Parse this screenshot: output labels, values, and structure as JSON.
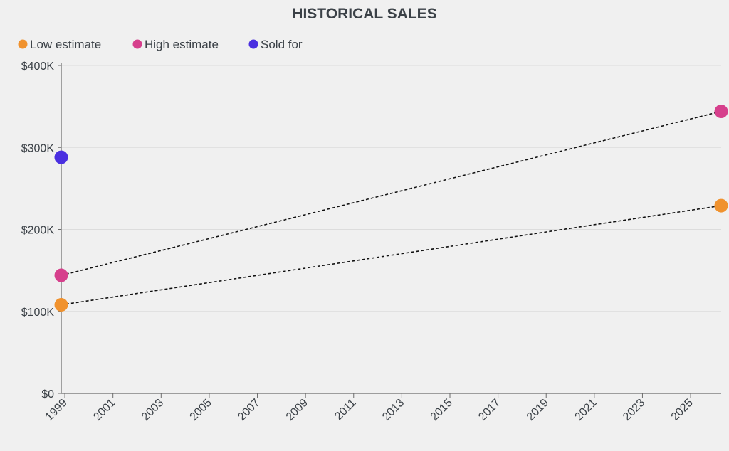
{
  "chart_data": {
    "type": "scatter",
    "title": "HISTORICAL SALES",
    "xlabel": "",
    "ylabel": "",
    "xlim": [
      1998.85,
      2026.27
    ],
    "ylim": [
      0,
      400000
    ],
    "grid": true,
    "legend_placement": "top-left",
    "y_ticks": [
      0,
      100000,
      200000,
      300000,
      400000
    ],
    "y_tick_labels": [
      "$0",
      "$100K",
      "$200K",
      "$300K",
      "$400K"
    ],
    "x_ticks": [
      1999,
      2001,
      2003,
      2005,
      2007,
      2009,
      2011,
      2013,
      2015,
      2017,
      2019,
      2021,
      2023,
      2025
    ],
    "x_tick_labels": [
      "1999",
      "2001",
      "2003",
      "2005",
      "2007",
      "2009",
      "2011",
      "2013",
      "2015",
      "2017",
      "2019",
      "2021",
      "2023",
      "2025"
    ],
    "series": [
      {
        "name": "Low estimate",
        "color": "#f0922e",
        "x": [
          1998.85,
          2026.27
        ],
        "values": [
          108000,
          229000
        ],
        "dashed_line": true
      },
      {
        "name": "High estimate",
        "color": "#d63f8c",
        "x": [
          1998.85,
          2026.27
        ],
        "values": [
          144000,
          344000
        ],
        "dashed_line": true
      },
      {
        "name": "Sold for",
        "color": "#4a2fe0",
        "x": [
          1998.85
        ],
        "values": [
          288000
        ],
        "dashed_line": false
      }
    ]
  }
}
